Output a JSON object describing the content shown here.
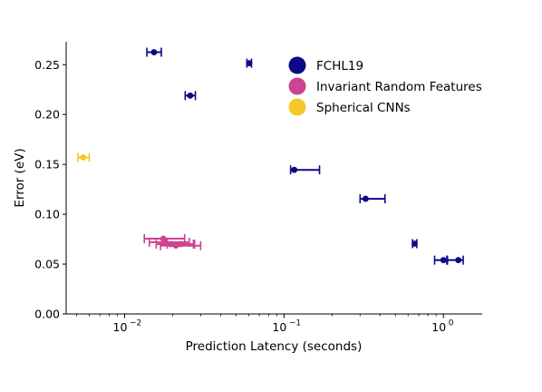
{
  "chart_data": {
    "type": "scatter",
    "xlabel": "Prediction Latency (seconds)",
    "ylabel": "Error (eV)",
    "xscale": "log",
    "xlim": [
      0.0043,
      1.75
    ],
    "ylim": [
      0.0,
      0.273
    ],
    "grid": false,
    "legend_position": "top-right",
    "x_ticks": [
      {
        "value": 0.01,
        "base": "10",
        "exp": "−2"
      },
      {
        "value": 0.1,
        "base": "10",
        "exp": "−1"
      },
      {
        "value": 1,
        "base": "10",
        "exp": "0"
      }
    ],
    "y_ticks": [
      "0.00",
      "0.05",
      "0.10",
      "0.15",
      "0.20",
      "0.25"
    ],
    "series": [
      {
        "name": "FCHL19",
        "color": "#0d0887",
        "points": [
          {
            "x": 0.0153,
            "y": 0.2625,
            "xerr_low": 0.0138,
            "xerr_high": 0.017
          },
          {
            "x": 0.0605,
            "y": 0.2515,
            "xerr_low": 0.0585,
            "xerr_high": 0.0625
          },
          {
            "x": 0.0258,
            "y": 0.219,
            "xerr_low": 0.024,
            "xerr_high": 0.0278
          },
          {
            "x": 0.116,
            "y": 0.1445,
            "xerr_low": 0.11,
            "xerr_high": 0.167
          },
          {
            "x": 0.325,
            "y": 0.1155,
            "xerr_low": 0.3,
            "xerr_high": 0.43
          },
          {
            "x": 0.66,
            "y": 0.0705,
            "xerr_low": 0.64,
            "xerr_high": 0.68
          },
          {
            "x": 1.0,
            "y": 0.054,
            "xerr_low": 0.88,
            "xerr_high": 1.05
          },
          {
            "x": 1.24,
            "y": 0.054,
            "xerr_low": 1.06,
            "xerr_high": 1.33
          }
        ]
      },
      {
        "name": "Invariant Random Features",
        "color": "#cc4391",
        "points": [
          {
            "x": 0.0175,
            "y": 0.0755,
            "xerr_low": 0.0133,
            "xerr_high": 0.0238
          },
          {
            "x": 0.018,
            "y": 0.072,
            "xerr_low": 0.0143,
            "xerr_high": 0.0255
          },
          {
            "x": 0.0195,
            "y": 0.07,
            "xerr_low": 0.0158,
            "xerr_high": 0.027
          },
          {
            "x": 0.021,
            "y": 0.0685,
            "xerr_low": 0.0168,
            "xerr_high": 0.03
          },
          {
            "x": 0.0225,
            "y": 0.07,
            "xerr_low": 0.0185,
            "xerr_high": 0.0275
          }
        ]
      },
      {
        "name": "Spherical CNNs",
        "color": "#f4c828",
        "points": [
          {
            "x": 0.0055,
            "y": 0.157,
            "xerr_low": 0.0051,
            "xerr_high": 0.006
          }
        ]
      }
    ]
  }
}
